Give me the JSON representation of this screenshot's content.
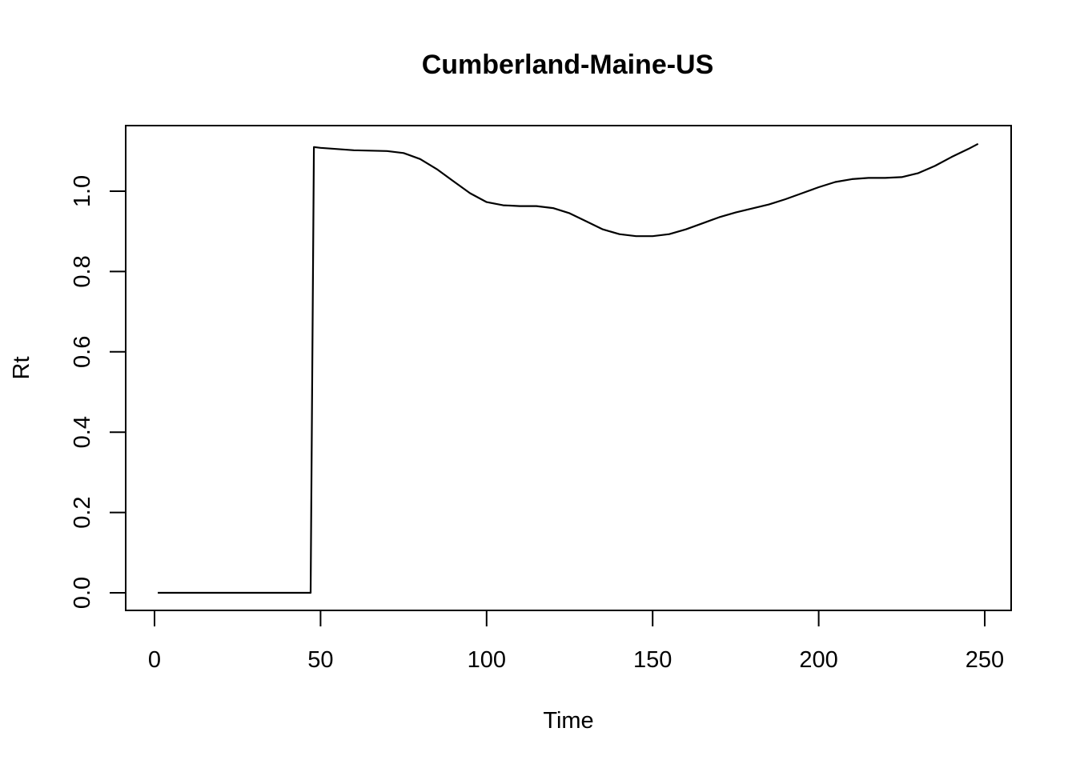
{
  "chart_data": {
    "type": "line",
    "title": "Cumberland-Maine-US",
    "xlabel": "Time",
    "ylabel": "Rt",
    "xlim": [
      1,
      248
    ],
    "ylim": [
      0,
      1.12
    ],
    "x_ticks": [
      0,
      50,
      100,
      150,
      200,
      250
    ],
    "x_tick_labels": [
      "0",
      "50",
      "100",
      "150",
      "200",
      "250"
    ],
    "y_ticks": [
      0.0,
      0.2,
      0.4,
      0.6,
      0.8,
      1.0
    ],
    "y_tick_labels": [
      "0.0",
      "0.2",
      "0.4",
      "0.6",
      "0.8",
      "1.0"
    ],
    "grid": false,
    "line_color": "#000000",
    "series": [
      {
        "x": [
          1,
          47,
          48,
          50,
          60,
          70,
          75,
          80,
          85,
          90,
          95,
          100,
          105,
          110,
          115,
          120,
          125,
          130,
          135,
          140,
          145,
          150,
          155,
          160,
          165,
          170,
          175,
          180,
          185,
          190,
          195,
          200,
          205,
          210,
          215,
          220,
          225,
          230,
          235,
          240,
          245,
          248
        ],
        "y": [
          0.0,
          0.0,
          1.11,
          1.108,
          1.102,
          1.1,
          1.095,
          1.08,
          1.055,
          1.025,
          0.995,
          0.973,
          0.965,
          0.963,
          0.963,
          0.958,
          0.945,
          0.925,
          0.905,
          0.893,
          0.888,
          0.888,
          0.893,
          0.905,
          0.92,
          0.935,
          0.947,
          0.957,
          0.967,
          0.98,
          0.995,
          1.01,
          1.023,
          1.03,
          1.033,
          1.033,
          1.035,
          1.045,
          1.063,
          1.085,
          1.105,
          1.118
        ]
      }
    ]
  }
}
